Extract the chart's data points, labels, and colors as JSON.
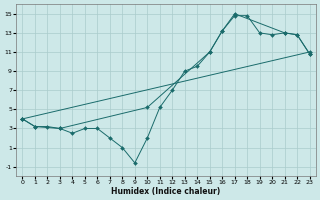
{
  "xlabel": "Humidex (Indice chaleur)",
  "xlim": [
    -0.5,
    23.5
  ],
  "ylim": [
    -2,
    16
  ],
  "xticks": [
    0,
    1,
    2,
    3,
    4,
    5,
    6,
    7,
    8,
    9,
    10,
    11,
    12,
    13,
    14,
    15,
    16,
    17,
    18,
    19,
    20,
    21,
    22,
    23
  ],
  "yticks": [
    -1,
    1,
    3,
    5,
    7,
    9,
    11,
    13,
    15
  ],
  "background_color": "#cde8e8",
  "grid_color": "#aacccc",
  "line_color": "#1a6b6b",
  "line1_x": [
    0,
    1,
    2,
    3,
    4,
    5,
    6,
    7,
    8,
    9,
    10,
    11,
    12,
    13,
    14,
    15,
    16,
    17,
    18,
    19,
    20,
    21,
    22,
    23
  ],
  "line1_y": [
    4,
    3.2,
    3.2,
    3.0,
    2.5,
    3.0,
    3.0,
    2.0,
    1.0,
    -0.6,
    2.0,
    5.2,
    7.0,
    9.0,
    9.5,
    11.0,
    13.2,
    14.8,
    14.8,
    13.0,
    12.8,
    13.0,
    12.8,
    10.8
  ],
  "line2_x": [
    0,
    23
  ],
  "line2_y": [
    4,
    11.0
  ],
  "line3_x": [
    0,
    1,
    3,
    10,
    15,
    16,
    17,
    21,
    22,
    23
  ],
  "line3_y": [
    4,
    3.2,
    3.0,
    5.2,
    11.0,
    13.2,
    15.0,
    13.0,
    12.8,
    10.8
  ]
}
